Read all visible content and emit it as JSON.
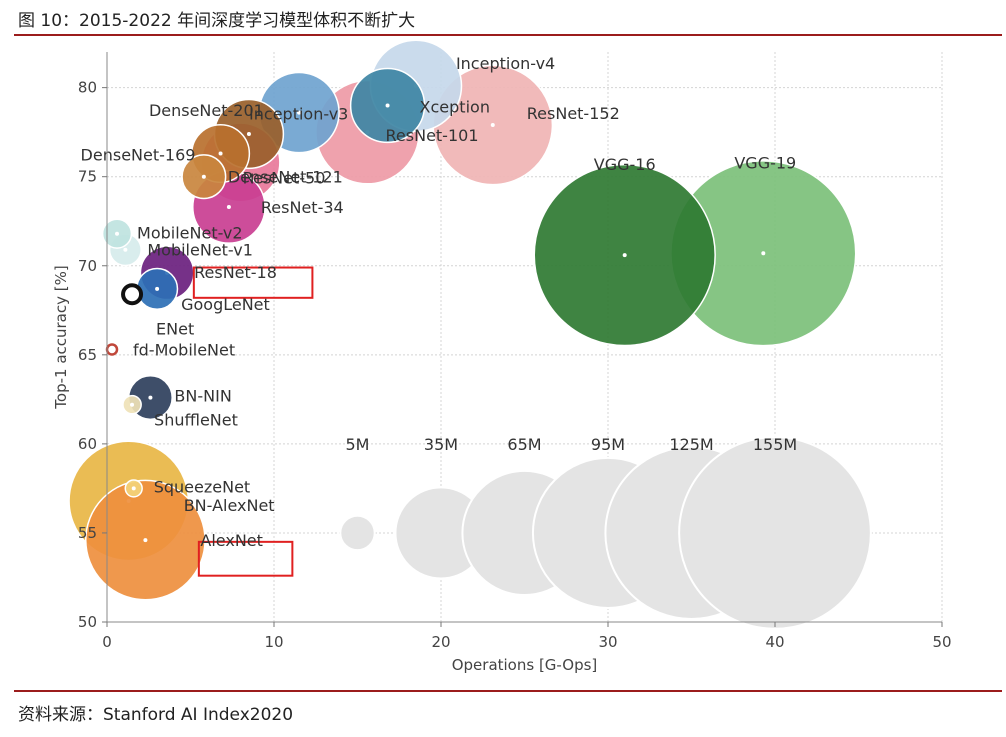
{
  "header": {
    "title": "图 10：2015-2022 年间深度学习模型体积不断扩大"
  },
  "footer": {
    "source": "资料来源：Stanford AI Index2020"
  },
  "colors": {
    "rule": "#9b1c1c",
    "highlight_box": "#e02020",
    "reference_bubble": "#e4e4e4"
  },
  "chart_data": {
    "type": "scatter",
    "xlabel": "Operations [G-Ops]",
    "ylabel": "Top-1 accuracy [%]",
    "xlim": [
      0,
      50
    ],
    "ylim": [
      50,
      82
    ],
    "x_ticks": [
      0,
      10,
      20,
      30,
      40,
      50
    ],
    "y_ticks": [
      50,
      55,
      60,
      65,
      70,
      75,
      80
    ],
    "grid": true,
    "size_unit": "parameters (M)",
    "models": [
      {
        "name": "Inception-v4",
        "x": 18.5,
        "y": 80.1,
        "params": 35,
        "color": "#c5d8ea"
      },
      {
        "name": "Inception-v3",
        "x": 11.5,
        "y": 78.6,
        "params": 27,
        "color": "#6fa3cf"
      },
      {
        "name": "Xception",
        "x": 16.8,
        "y": 79.0,
        "params": 23,
        "color": "#3e86a4"
      },
      {
        "name": "ResNet-152",
        "x": 23.1,
        "y": 77.9,
        "params": 60,
        "color": "#f0b4b4"
      },
      {
        "name": "ResNet-101",
        "x": 15.6,
        "y": 77.5,
        "params": 45,
        "color": "#ee9aa6"
      },
      {
        "name": "ResNet-50",
        "x": 8.0,
        "y": 75.8,
        "params": 26,
        "color": "#e8789a"
      },
      {
        "name": "DenseNet-201",
        "x": 8.5,
        "y": 77.4,
        "params": 20,
        "color": "#995f2a"
      },
      {
        "name": "DenseNet-169",
        "x": 6.8,
        "y": 76.3,
        "params": 14,
        "color": "#b8702e"
      },
      {
        "name": "DenseNet-121",
        "x": 5.8,
        "y": 75.0,
        "params": 8,
        "color": "#c9863e"
      },
      {
        "name": "ResNet-34",
        "x": 7.3,
        "y": 73.3,
        "params": 22,
        "color": "#c93e91"
      },
      {
        "name": "MobileNet-v2",
        "x": 0.6,
        "y": 71.8,
        "params": 3.5,
        "color": "#bfe3e0"
      },
      {
        "name": "MobileNet-v1",
        "x": 1.1,
        "y": 70.9,
        "params": 4.2,
        "color": "#d6ecec"
      },
      {
        "name": "ResNet-18",
        "x": 3.6,
        "y": 69.6,
        "params": 12,
        "color": "#6a207e"
      },
      {
        "name": "GoogLeNet",
        "x": 3.0,
        "y": 68.7,
        "params": 7,
        "color": "#2d6fb5"
      },
      {
        "name": "ENet",
        "x": 1.5,
        "y": 68.4,
        "params": 0.4,
        "color": "#111111"
      },
      {
        "name": "fd-MobileNet",
        "x": 0.3,
        "y": 65.3,
        "params": 1,
        "color": "#c0473a"
      },
      {
        "name": "BN-NIN",
        "x": 2.6,
        "y": 62.6,
        "params": 8,
        "color": "#2e3f5c"
      },
      {
        "name": "ShuffleNet",
        "x": 1.5,
        "y": 62.2,
        "params": 1.4,
        "color": "#efe2b7"
      },
      {
        "name": "SqueezeNet",
        "x": 1.6,
        "y": 57.5,
        "params": 1.2,
        "color": "#f3d27a"
      },
      {
        "name": "BN-AlexNet",
        "x": 1.3,
        "y": 56.8,
        "params": 60,
        "color": "#e8b645"
      },
      {
        "name": "AlexNet",
        "x": 2.3,
        "y": 54.6,
        "params": 60,
        "color": "#ee8f3e"
      },
      {
        "name": "VGG-16",
        "x": 31.0,
        "y": 70.6,
        "params": 138,
        "color": "#2f7a32"
      },
      {
        "name": "VGG-19",
        "x": 39.3,
        "y": 70.7,
        "params": 144,
        "color": "#7cc07a"
      }
    ],
    "size_legend": [
      {
        "label": "5M",
        "x": 15,
        "y": 55,
        "params": 5
      },
      {
        "label": "35M",
        "x": 20,
        "y": 55,
        "params": 35
      },
      {
        "label": "65M",
        "x": 25,
        "y": 55,
        "params": 65
      },
      {
        "label": "95M",
        "x": 30,
        "y": 55,
        "params": 95
      },
      {
        "label": "125M",
        "x": 35,
        "y": 55,
        "params": 125
      },
      {
        "label": "155M",
        "x": 40,
        "y": 55,
        "params": 155
      }
    ],
    "highlights": [
      {
        "near": "GoogLeNet",
        "x0": 5.2,
        "x1": 12.3,
        "y0": 68.2,
        "y1": 69.9
      },
      {
        "near": "AlexNet",
        "x0": 5.5,
        "x1": 11.1,
        "y0": 52.6,
        "y1": 54.5
      }
    ]
  }
}
